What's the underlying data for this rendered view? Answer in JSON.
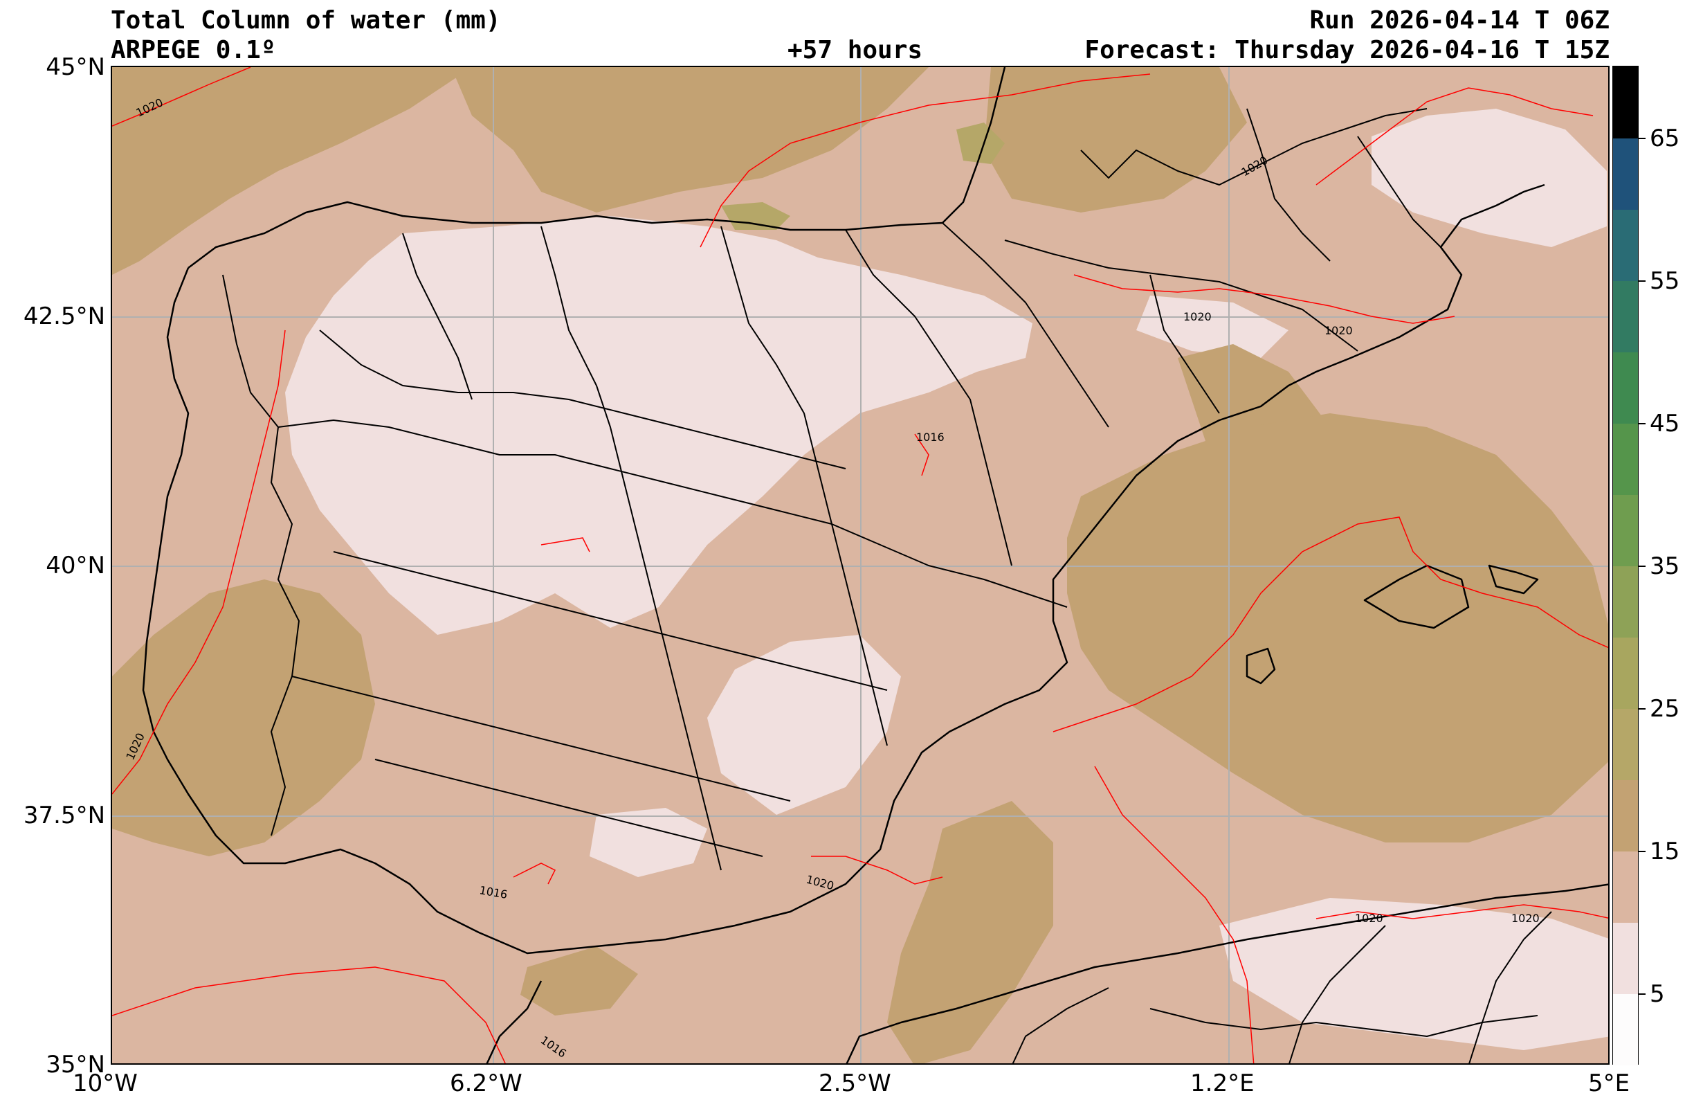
{
  "header": {
    "title": "Total Column of water (mm)",
    "model": "ARPEGE 0.1º",
    "lead": "+57 hours",
    "run": "Run 2026-04-14 T 06Z",
    "forecast": "Forecast: Thursday 2026-04-16 T 15Z"
  },
  "map": {
    "lon_labels": [
      "10°W",
      "6.2°W",
      "2.5°W",
      "1.2°E",
      "5°E"
    ],
    "lat_labels": [
      "45°N",
      "42.5°N",
      "40°N",
      "37.5°N",
      "35°N"
    ],
    "lon_range": [
      -10,
      5
    ],
    "lat_range": [
      35,
      45
    ],
    "isobar_labels": [
      "1020",
      "1020",
      "1020",
      "1020",
      "1020",
      "1016",
      "1016",
      "1016",
      "1020",
      "1020",
      "1020"
    ],
    "colors": {
      "sea_base": "#dbb6a1",
      "dry": "#f1e0df",
      "moist": "#c3a273",
      "moister": "#b5a768",
      "border": "#000000",
      "isobar": "#ff0000",
      "grid": "#b0b0b0"
    }
  },
  "colorbar": {
    "tick_labels": [
      "65",
      "55",
      "45",
      "35",
      "25",
      "15",
      "5"
    ],
    "levels": [
      0,
      5,
      10,
      15,
      20,
      25,
      30,
      35,
      40,
      45,
      50,
      55,
      60,
      65,
      70
    ],
    "colors": [
      "#fdfcfc",
      "#f1e0df",
      "#dbb6a1",
      "#c3a273",
      "#b5a768",
      "#a8a65f",
      "#8ea257",
      "#6f9d4f",
      "#55954b",
      "#3f8a50",
      "#327b62",
      "#2a6c75",
      "#1f527a",
      "#17337e",
      "#000000"
    ]
  }
}
